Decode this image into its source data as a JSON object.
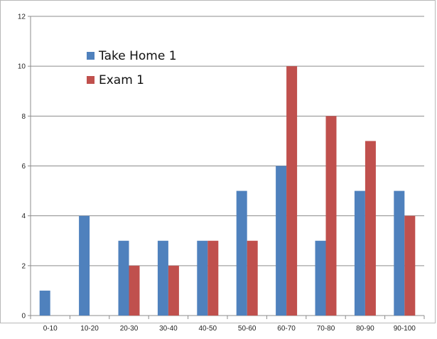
{
  "chart_data": {
    "type": "bar",
    "title": "",
    "xlabel": "",
    "ylabel": "",
    "categories": [
      "0-10",
      "10-20",
      "20-30",
      "30-40",
      "40-50",
      "50-60",
      "60-70",
      "70-80",
      "80-90",
      "90-100"
    ],
    "series": [
      {
        "name": "Take Home 1",
        "color": "#4f81bd",
        "values": [
          1,
          4,
          3,
          3,
          3,
          5,
          6,
          3,
          5,
          5
        ]
      },
      {
        "name": "Exam 1",
        "color": "#c0504d",
        "values": [
          0,
          0,
          2,
          2,
          3,
          3,
          10,
          8,
          7,
          4
        ]
      }
    ],
    "ylim": [
      0,
      12
    ],
    "yticks": [
      0,
      2,
      4,
      6,
      8,
      10,
      12
    ],
    "grid": true,
    "legend": "top-left"
  }
}
